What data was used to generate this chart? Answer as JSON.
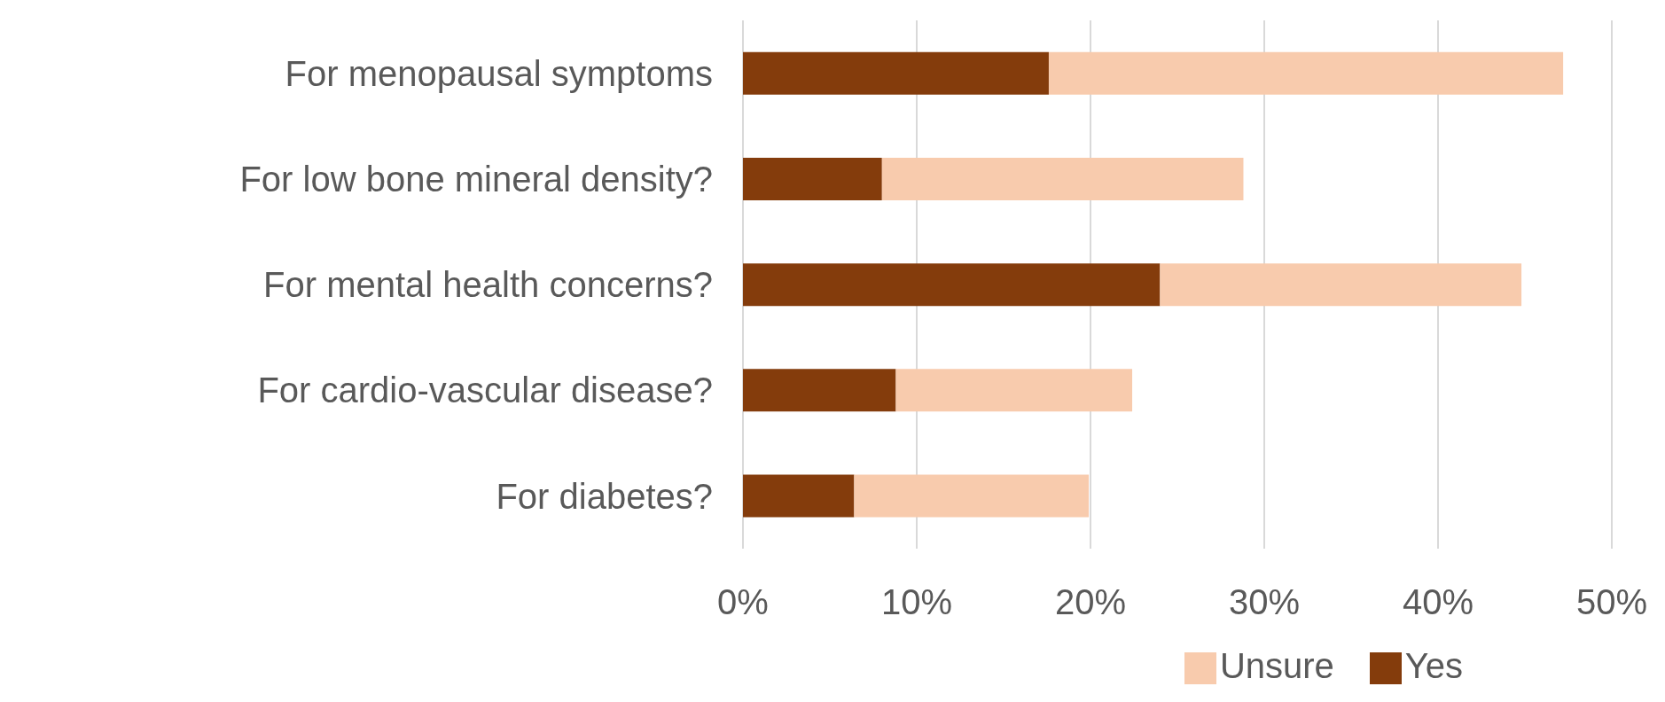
{
  "chart_data": {
    "type": "bar",
    "orientation": "horizontal",
    "stacked": true,
    "categories": [
      "For menopausal symptoms",
      "For low bone mineral density?",
      "For mental health concerns?",
      "For cardio-vascular disease?",
      "For diabetes?"
    ],
    "series": [
      {
        "name": "Yes",
        "color": "#843c0c",
        "values": [
          17.6,
          8.0,
          24.0,
          8.8,
          6.4
        ]
      },
      {
        "name": "Unsure",
        "color": "#f8cbad",
        "values": [
          29.6,
          20.8,
          20.8,
          13.6,
          13.5
        ]
      }
    ],
    "xlim": [
      0,
      50
    ],
    "xticks": [
      {
        "value": 0,
        "label": "0%"
      },
      {
        "value": 10,
        "label": "10%"
      },
      {
        "value": 20,
        "label": "20%"
      },
      {
        "value": 30,
        "label": "30%"
      },
      {
        "value": 40,
        "label": "40%"
      },
      {
        "value": 50,
        "label": "50%"
      }
    ],
    "grid": "x",
    "legend": "bottom"
  }
}
